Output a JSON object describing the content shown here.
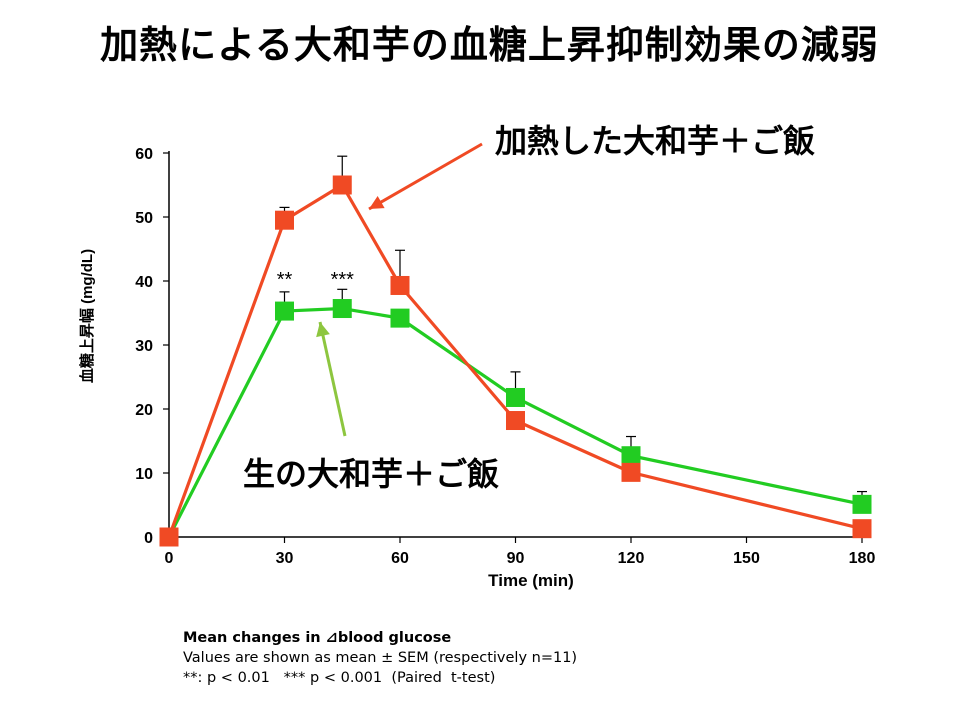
{
  "title": "加熱による大和芋の血糖上昇抑制効果の減弱",
  "chart_data": {
    "type": "line",
    "xlabel": "Time (min)",
    "ylabel": "血糖上昇幅 (mg/dL)",
    "xlim": [
      0,
      180
    ],
    "ylim": [
      0,
      60
    ],
    "xticks": [
      0,
      30,
      60,
      90,
      120,
      150,
      180
    ],
    "yticks": [
      0,
      10,
      20,
      30,
      40,
      50,
      60
    ],
    "grid": false,
    "x": [
      0,
      30,
      45,
      60,
      90,
      120,
      180
    ],
    "series": [
      {
        "name": "加熱した大和芋＋ご飯",
        "color": "#f04a24",
        "values": [
          0,
          49.5,
          55,
          39.3,
          18.2,
          10.1,
          1.3
        ],
        "sem": [
          0,
          2,
          4.5,
          5.5,
          0,
          0,
          0
        ]
      },
      {
        "name": "生の大和芋＋ご飯",
        "color": "#22cc22",
        "values": [
          0,
          35.3,
          35.7,
          34.2,
          21.8,
          12.7,
          5.1
        ],
        "sem": [
          0,
          3,
          3,
          0,
          4,
          3,
          2
        ]
      }
    ],
    "significance": [
      {
        "x": 30,
        "label": "**"
      },
      {
        "x": 45,
        "label": "***"
      }
    ]
  },
  "notes": {
    "line1": "Mean changes in ⊿blood glucose",
    "line2": "Values are shown as mean ± SEM (respectively n=11)",
    "line3": "**: p < 0.01   *** p < 0.001  (Paired  t-test)"
  }
}
